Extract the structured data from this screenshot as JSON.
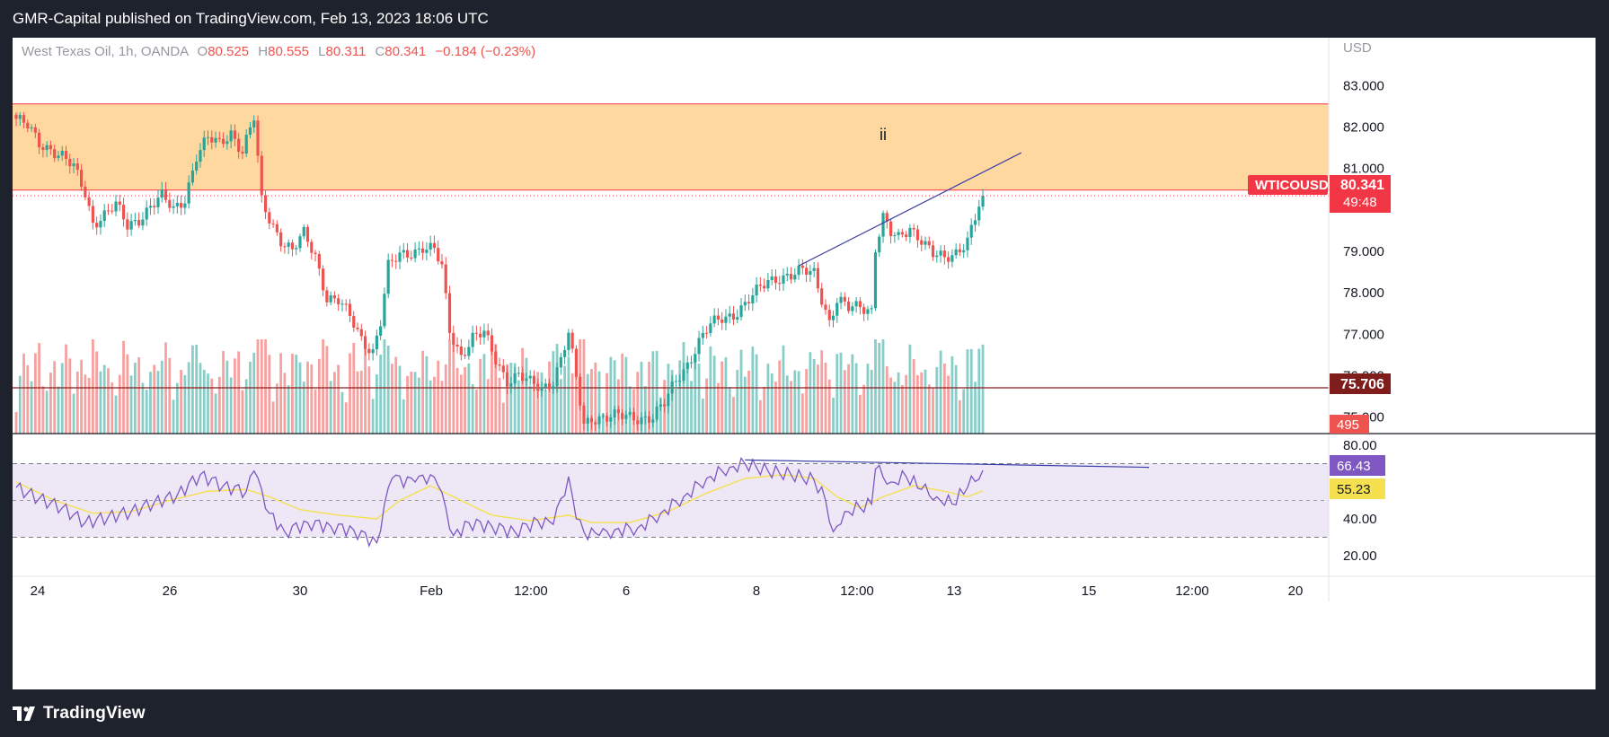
{
  "header": {
    "publisher_line": "GMR-Capital published on TradingView.com, Feb 13, 2023 18:06 UTC"
  },
  "footer": {
    "brand": "TradingView"
  },
  "legend": {
    "symbol": "West Texas Oil, 1h, OANDA",
    "open_label": "O",
    "open_value": "80.525",
    "high_label": "H",
    "high_value": "80.555",
    "low_label": "L",
    "low_value": "80.311",
    "close_label": "C",
    "close_value": "80.341",
    "change": "−0.184 (−0.23%)"
  },
  "price_axis": {
    "currency": "USD",
    "ticks": [
      "83.000",
      "82.000",
      "81.000",
      "79.000",
      "78.000",
      "77.000",
      "76.000",
      "75.000"
    ],
    "ticker_label": "WTICOUSD",
    "last_price": "80.341",
    "countdown": "49:48",
    "level_label": "75.706",
    "volume_label": "495"
  },
  "rsi_axis": {
    "ticks": [
      "80.00",
      "40.00",
      "20.00"
    ],
    "rsi_value": "66.43",
    "rsi_ma_value": "55.23"
  },
  "time_axis": {
    "ticks": [
      "24",
      "26",
      "30",
      "Feb",
      "12:00",
      "6",
      "8",
      "12:00",
      "13",
      "15",
      "12:00",
      "20"
    ]
  },
  "annotations": {
    "wave_label": "ii"
  },
  "colors": {
    "up": "#26a69a",
    "down": "#ef5350",
    "zone_fill": "#ffd8a0",
    "zone_line": "#f23645",
    "level_line": "#8b1e1e",
    "trendline": "#3b3fa8",
    "rsi_line": "#7e57c2",
    "rsi_ma": "#f5e050",
    "rsi_band": "#ede7f6",
    "last_price_bg": "#f23645",
    "level_bg": "#7f1d1d"
  },
  "chart_data": {
    "type": "candlestick",
    "symbol": "West Texas Oil",
    "interval": "1h",
    "exchange": "OANDA",
    "currency": "USD",
    "ylim": [
      74.6,
      83.4
    ],
    "x_ticks": [
      "24",
      "26",
      "30",
      "Feb",
      "12:00",
      "6",
      "8",
      "12:00",
      "13",
      "15",
      "12:00",
      "20"
    ],
    "price_close_path": [
      [
        0,
        82.2
      ],
      [
        3,
        82.0
      ],
      [
        6,
        81.6
      ],
      [
        9,
        81.5
      ],
      [
        12,
        81.3
      ],
      [
        15,
        81.0
      ],
      [
        18,
        80.4
      ],
      [
        20,
        79.7
      ],
      [
        23,
        79.9
      ],
      [
        26,
        80.1
      ],
      [
        29,
        79.6
      ],
      [
        32,
        79.8
      ],
      [
        35,
        80.1
      ],
      [
        38,
        80.3
      ],
      [
        41,
        80.0
      ],
      [
        44,
        80.3
      ],
      [
        47,
        81.3
      ],
      [
        50,
        81.7
      ],
      [
        53,
        81.6
      ],
      [
        56,
        81.9
      ],
      [
        59,
        81.4
      ],
      [
        62,
        82.2
      ],
      [
        64,
        80.2
      ],
      [
        66,
        79.8
      ],
      [
        69,
        79.3
      ],
      [
        72,
        79.0
      ],
      [
        75,
        79.4
      ],
      [
        78,
        78.9
      ],
      [
        81,
        77.9
      ],
      [
        84,
        77.8
      ],
      [
        87,
        77.4
      ],
      [
        90,
        76.9
      ],
      [
        93,
        76.6
      ],
      [
        95,
        77.3
      ],
      [
        97,
        78.6
      ],
      [
        100,
        78.9
      ],
      [
        103,
        79.0
      ],
      [
        106,
        79.1
      ],
      [
        109,
        79.0
      ],
      [
        111,
        78.6
      ],
      [
        113,
        77.1
      ],
      [
        116,
        76.5
      ],
      [
        119,
        76.9
      ],
      [
        122,
        77.0
      ],
      [
        125,
        76.4
      ],
      [
        128,
        75.9
      ],
      [
        131,
        76.0
      ],
      [
        134,
        75.8
      ],
      [
        137,
        75.7
      ],
      [
        140,
        75.9
      ],
      [
        142,
        76.4
      ],
      [
        144,
        77.0
      ],
      [
        146,
        75.9
      ],
      [
        148,
        74.8
      ],
      [
        150,
        75.0
      ],
      [
        160,
        75.0
      ],
      [
        166,
        75.0
      ],
      [
        169,
        75.3
      ],
      [
        172,
        75.9
      ],
      [
        175,
        76.3
      ],
      [
        178,
        76.8
      ],
      [
        181,
        77.2
      ],
      [
        184,
        77.4
      ],
      [
        187,
        77.5
      ],
      [
        190,
        77.7
      ],
      [
        193,
        78.0
      ],
      [
        196,
        78.3
      ],
      [
        199,
        78.4
      ],
      [
        202,
        78.4
      ],
      [
        205,
        78.5
      ],
      [
        208,
        78.5
      ],
      [
        210,
        77.9
      ],
      [
        212,
        77.3
      ],
      [
        214,
        77.8
      ],
      [
        217,
        77.6
      ],
      [
        220,
        77.7
      ],
      [
        223,
        77.6
      ],
      [
        224,
        79.1
      ],
      [
        226,
        79.8
      ],
      [
        228,
        79.4
      ],
      [
        230,
        79.3
      ],
      [
        233,
        79.6
      ],
      [
        236,
        79.3
      ],
      [
        239,
        78.9
      ],
      [
        242,
        78.8
      ],
      [
        245,
        79.0
      ],
      [
        248,
        79.3
      ],
      [
        250,
        79.8
      ],
      [
        252,
        80.341
      ]
    ],
    "support_resistance_zone": [
      80.48,
      82.56
    ],
    "horizontal_level": 75.706,
    "last_price": 80.341,
    "volume_last": 495,
    "rsi": {
      "levels": [
        70,
        30
      ],
      "ticks": [
        80,
        40,
        20
      ],
      "rsi_last": 66.43,
      "rsi_ma_last": 55.23,
      "rsi_path": [
        [
          0,
          57
        ],
        [
          6,
          51
        ],
        [
          12,
          46
        ],
        [
          18,
          38
        ],
        [
          24,
          41
        ],
        [
          30,
          44
        ],
        [
          36,
          49
        ],
        [
          42,
          53
        ],
        [
          48,
          64
        ],
        [
          54,
          58
        ],
        [
          60,
          55
        ],
        [
          62,
          66
        ],
        [
          64,
          56
        ],
        [
          66,
          43
        ],
        [
          70,
          33
        ],
        [
          76,
          38
        ],
        [
          82,
          36
        ],
        [
          88,
          34
        ],
        [
          94,
          27
        ],
        [
          96,
          48
        ],
        [
          98,
          62
        ],
        [
          104,
          60
        ],
        [
          108,
          64
        ],
        [
          110,
          58
        ],
        [
          112,
          46
        ],
        [
          114,
          31
        ],
        [
          118,
          38
        ],
        [
          124,
          36
        ],
        [
          130,
          33
        ],
        [
          136,
          39
        ],
        [
          140,
          37
        ],
        [
          144,
          63
        ],
        [
          146,
          40
        ],
        [
          148,
          33
        ],
        [
          152,
          31
        ],
        [
          156,
          34
        ],
        [
          162,
          35
        ],
        [
          168,
          43
        ],
        [
          174,
          52
        ],
        [
          180,
          62
        ],
        [
          186,
          68
        ],
        [
          190,
          70
        ],
        [
          196,
          66
        ],
        [
          202,
          64
        ],
        [
          208,
          61
        ],
        [
          211,
          50
        ],
        [
          213,
          33
        ],
        [
          216,
          44
        ],
        [
          220,
          46
        ],
        [
          223,
          48
        ],
        [
          224,
          67
        ],
        [
          228,
          60
        ],
        [
          232,
          63
        ],
        [
          236,
          56
        ],
        [
          240,
          52
        ],
        [
          244,
          48
        ],
        [
          248,
          57
        ],
        [
          252,
          66.43
        ]
      ],
      "rsi_ma_path": [
        [
          0,
          60
        ],
        [
          10,
          50
        ],
        [
          20,
          43
        ],
        [
          30,
          44
        ],
        [
          40,
          50
        ],
        [
          50,
          55
        ],
        [
          60,
          56
        ],
        [
          66,
          52
        ],
        [
          74,
          45
        ],
        [
          84,
          42
        ],
        [
          94,
          40
        ],
        [
          100,
          50
        ],
        [
          108,
          58
        ],
        [
          114,
          52
        ],
        [
          124,
          42
        ],
        [
          134,
          39
        ],
        [
          144,
          42
        ],
        [
          150,
          38
        ],
        [
          160,
          38
        ],
        [
          170,
          44
        ],
        [
          180,
          54
        ],
        [
          190,
          62
        ],
        [
          200,
          64
        ],
        [
          208,
          62
        ],
        [
          214,
          52
        ],
        [
          220,
          46
        ],
        [
          226,
          52
        ],
        [
          234,
          58
        ],
        [
          242,
          55
        ],
        [
          248,
          52
        ],
        [
          252,
          55.23
        ]
      ]
    }
  }
}
